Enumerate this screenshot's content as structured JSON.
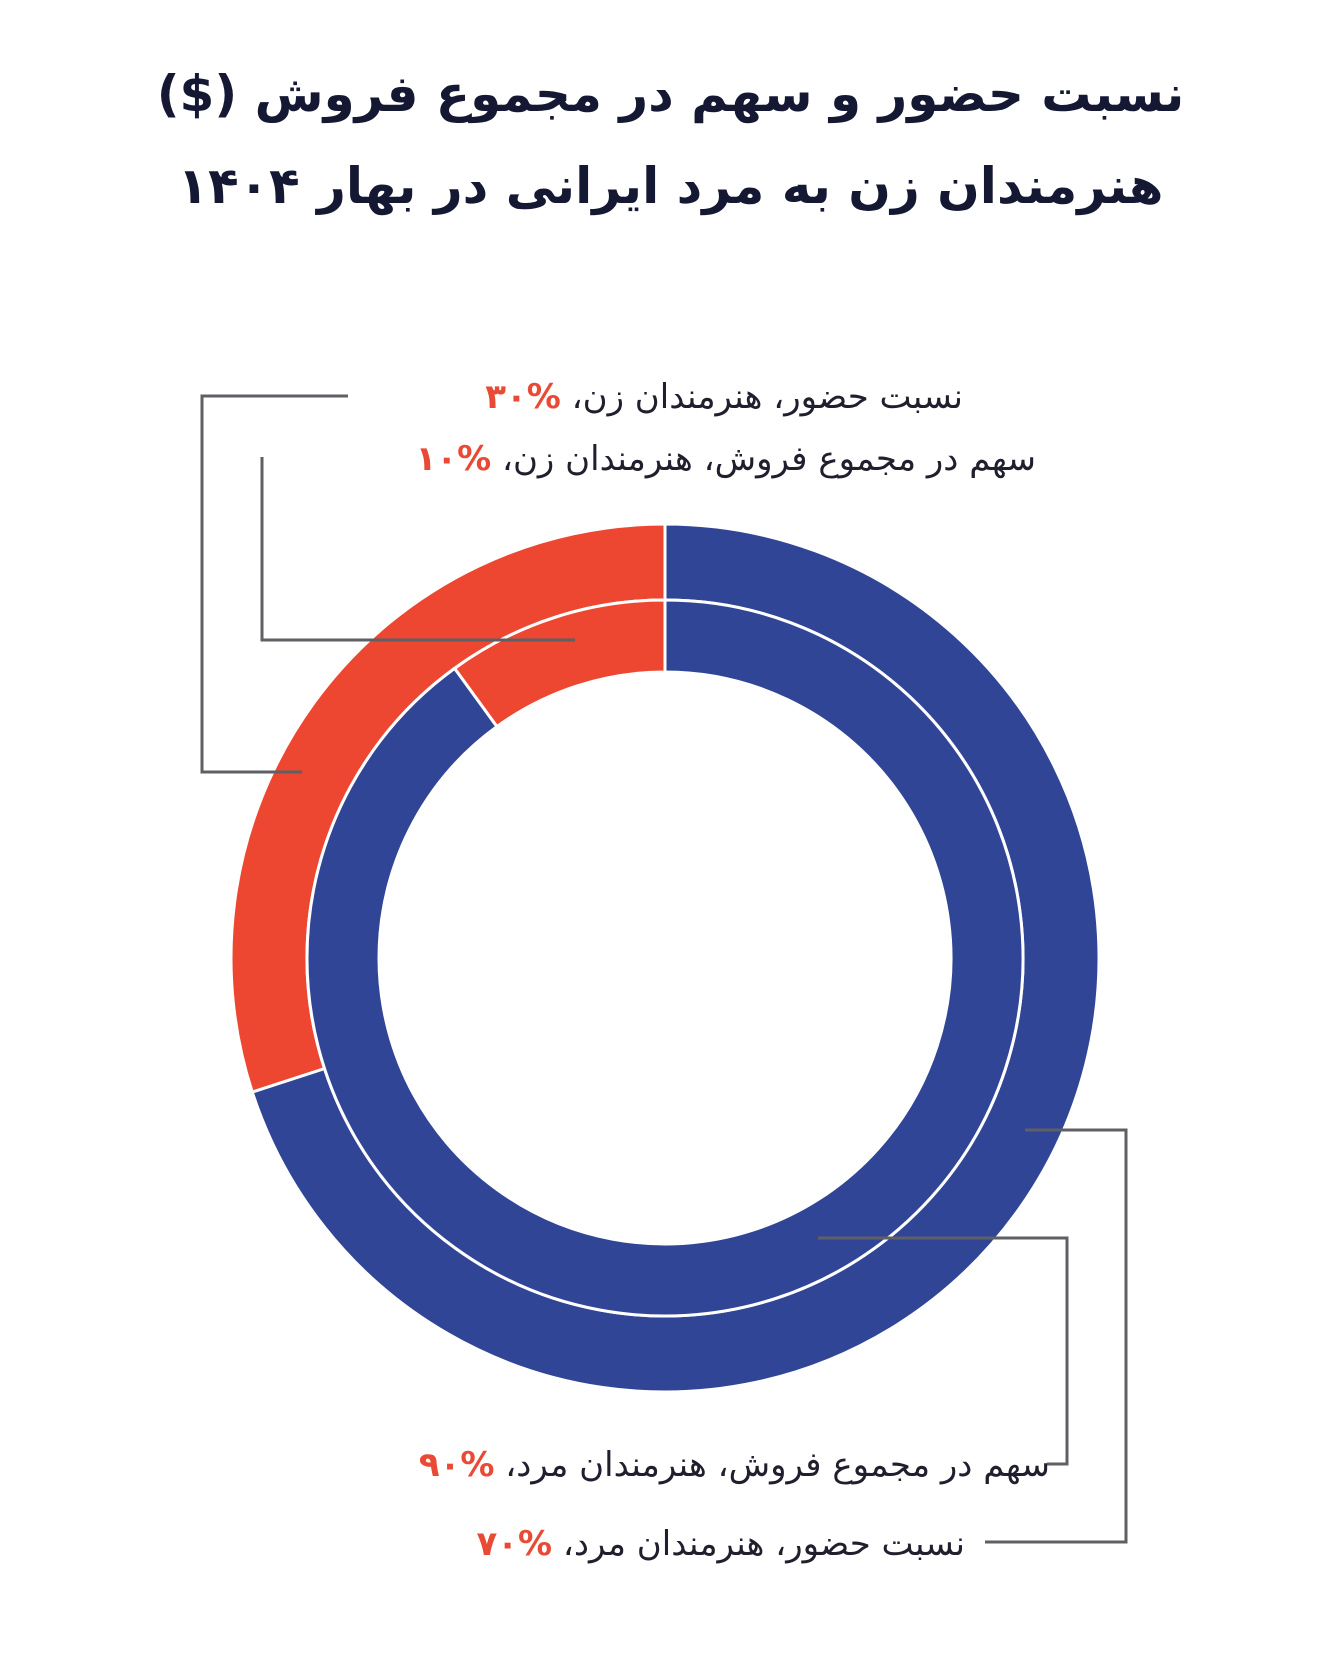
{
  "title_lines": [
    "نسبت حضور و سهم در مجموع فروش ($)",
    "هنرمندان زن به مرد ایرانی در بهار ۱۴۰۴"
  ],
  "colors": {
    "female": "#ee4731",
    "male": "#314597",
    "leader": "#5f5f66",
    "title": "#141833",
    "percent": "#e94a35"
  },
  "chart_data": {
    "type": "pie",
    "style": "nested-donut",
    "title": "نسبت حضور و سهم در مجموع فروش ($) هنرمندان زن به مرد ایرانی در بهار ۱۴۰۴",
    "rings": [
      {
        "ring": "outer",
        "slices": [
          {
            "key": "female",
            "value": 30,
            "label": "نسبت حضور، هنرمندان زن،",
            "value_label": "%۳۰"
          },
          {
            "key": "male",
            "value": 70,
            "label": "نسبت حضور، هنرمندان مرد،",
            "value_label": "%۷۰"
          }
        ]
      },
      {
        "ring": "inner",
        "slices": [
          {
            "key": "female",
            "value": 10,
            "label": "سهم در مجموع فروش، هنرمندان زن،",
            "value_label": "%۱۰"
          },
          {
            "key": "male",
            "value": 90,
            "label": "سهم در مجموع فروش، هنرمندان مرد،",
            "value_label": "%۹۰"
          }
        ]
      }
    ]
  }
}
